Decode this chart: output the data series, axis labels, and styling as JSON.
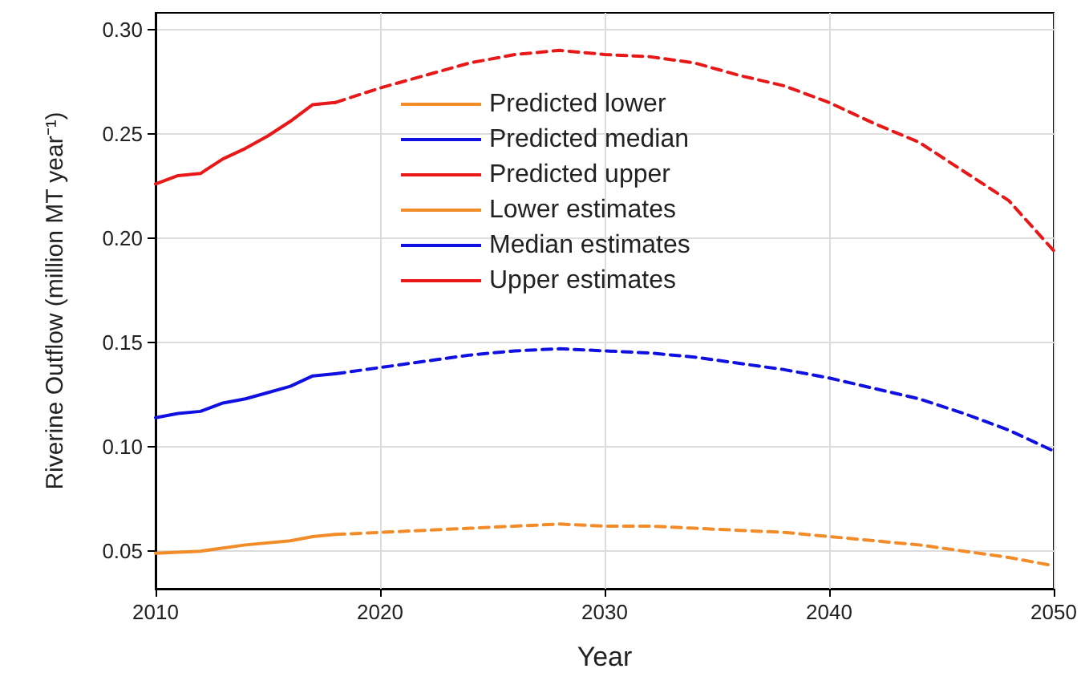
{
  "chart_data": {
    "type": "line",
    "xlabel": "Year",
    "ylabel": "Riverine Outflow (million MT year⁻¹)",
    "xlim": [
      2010,
      2050
    ],
    "xticks": [
      2010,
      2020,
      2030,
      2040,
      2050
    ],
    "ylim": [
      0.032,
      0.308
    ],
    "yticks": [
      0.05,
      {
        "value": 0.1,
        "label": "0.10"
      },
      0.15,
      {
        "value": 0.2,
        "label": "0.20"
      },
      0.25,
      {
        "value": 0.3,
        "label": "0.30"
      }
    ],
    "grid": true,
    "legend": "top",
    "marker": "none",
    "series": [
      {
        "name": "Predicted lower",
        "color": "#f28c28",
        "line_style": "dashed",
        "x": [
          2018,
          2020,
          2022,
          2024,
          2026,
          2028,
          2030,
          2032,
          2034,
          2036,
          2038,
          2040,
          2042,
          2044,
          2046,
          2048,
          2050
        ],
        "values": [
          0.058,
          0.059,
          0.06,
          0.061,
          0.062,
          0.063,
          0.062,
          0.062,
          0.061,
          0.06,
          0.059,
          0.057,
          0.055,
          0.053,
          0.05,
          0.047,
          0.043
        ]
      },
      {
        "name": "Predicted median",
        "color": "#1010e0",
        "line_style": "dashed",
        "x": [
          2018,
          2020,
          2022,
          2024,
          2026,
          2028,
          2030,
          2032,
          2034,
          2036,
          2038,
          2040,
          2042,
          2044,
          2046,
          2048,
          2050
        ],
        "values": [
          0.135,
          0.138,
          0.141,
          0.144,
          0.146,
          0.147,
          0.146,
          0.145,
          0.143,
          0.14,
          0.137,
          0.133,
          0.128,
          0.123,
          0.116,
          0.108,
          0.098
        ]
      },
      {
        "name": "Predicted upper",
        "color": "#e81818",
        "line_style": "dashed",
        "x": [
          2018,
          2020,
          2022,
          2024,
          2026,
          2028,
          2030,
          2032,
          2034,
          2036,
          2038,
          2040,
          2042,
          2044,
          2046,
          2048,
          2050
        ],
        "values": [
          0.265,
          0.272,
          0.278,
          0.284,
          0.288,
          0.29,
          0.288,
          0.287,
          0.284,
          0.278,
          0.273,
          0.265,
          0.255,
          0.246,
          0.232,
          0.218,
          0.194
        ]
      },
      {
        "name": "Lower estimates",
        "color": "#f28c28",
        "line_style": "solid",
        "x": [
          2010,
          2012,
          2014,
          2016,
          2017,
          2018
        ],
        "values": [
          0.049,
          0.05,
          0.053,
          0.055,
          0.057,
          0.058
        ]
      },
      {
        "name": "Median estimates",
        "color": "#1010e0",
        "line_style": "solid",
        "x": [
          2010,
          2011,
          2012,
          2013,
          2014,
          2015,
          2016,
          2017,
          2018
        ],
        "values": [
          0.114,
          0.116,
          0.117,
          0.121,
          0.123,
          0.126,
          0.129,
          0.134,
          0.135
        ]
      },
      {
        "name": "Upper estimates",
        "color": "#e81818",
        "line_style": "solid",
        "x": [
          2010,
          2011,
          2012,
          2013,
          2014,
          2015,
          2016,
          2017,
          2018
        ],
        "values": [
          0.226,
          0.23,
          0.231,
          0.238,
          0.243,
          0.249,
          0.256,
          0.264,
          0.265
        ]
      }
    ]
  }
}
